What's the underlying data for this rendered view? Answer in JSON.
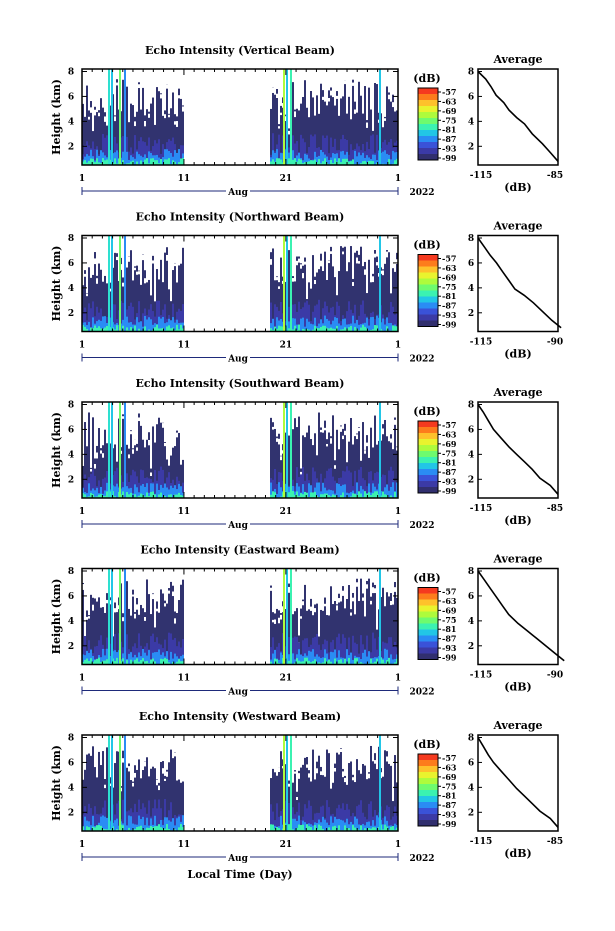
{
  "figure": {
    "xlabel": "Local Time (Day)"
  },
  "colorbar": {
    "unit": "(dB)",
    "ticks": [
      "-57",
      "-63",
      "-69",
      "-75",
      "-81",
      "-87",
      "-93",
      "-99"
    ],
    "colors": [
      "#f53a1f",
      "#fd7c1c",
      "#fec12b",
      "#e9f32e",
      "#aefb3c",
      "#6efb6e",
      "#3bf2b1",
      "#22c6e6",
      "#2a8cf4",
      "#3a52d8",
      "#3b3aa6",
      "#312f6e"
    ]
  },
  "panels": [
    {
      "title": "Echo Intensity (Vertical Beam)",
      "ylabel": "Height (km)",
      "ytick_labels": [
        "8",
        "6",
        "4",
        "2"
      ],
      "xtick_labels": [
        "1",
        "11",
        "21",
        "1"
      ],
      "month_label": "Aug",
      "year_label": "2022",
      "profile": {
        "title": "Average",
        "xtick_labels": [
          "-115",
          "-85"
        ],
        "xlabel": "(dB)",
        "ytick_labels": [
          "8",
          "6",
          "4",
          "2"
        ]
      }
    },
    {
      "title": "Echo Intensity (Northward Beam)",
      "ylabel": "Height (km)",
      "ytick_labels": [
        "8",
        "6",
        "4",
        "2"
      ],
      "xtick_labels": [
        "1",
        "11",
        "21",
        "1"
      ],
      "month_label": "Aug",
      "year_label": "2022",
      "profile": {
        "title": "Average",
        "xtick_labels": [
          "-115",
          "-90"
        ],
        "xlabel": "(dB)",
        "ytick_labels": [
          "8",
          "6",
          "4",
          "2"
        ]
      }
    },
    {
      "title": "Echo Intensity (Southward Beam)",
      "ylabel": "Height (km)",
      "ytick_labels": [
        "8",
        "6",
        "4",
        "2"
      ],
      "xtick_labels": [
        "1",
        "11",
        "21",
        "1"
      ],
      "month_label": "Aug",
      "year_label": "2022",
      "profile": {
        "title": "Average",
        "xtick_labels": [
          "-115",
          "-85"
        ],
        "xlabel": "(dB)",
        "ytick_labels": [
          "8",
          "6",
          "4",
          "2"
        ]
      }
    },
    {
      "title": "Echo Intensity (Eastward Beam)",
      "ylabel": "Height (km)",
      "ytick_labels": [
        "8",
        "6",
        "4",
        "2"
      ],
      "xtick_labels": [
        "1",
        "11",
        "21",
        "1"
      ],
      "month_label": "Aug",
      "year_label": "2022",
      "profile": {
        "title": "Average",
        "xtick_labels": [
          "-115",
          "-90"
        ],
        "xlabel": "(dB)",
        "ytick_labels": [
          "8",
          "6",
          "4",
          "2"
        ]
      }
    },
    {
      "title": "Echo Intensity (Westward Beam)",
      "ylabel": "Height (km)",
      "ytick_labels": [
        "8",
        "6",
        "4",
        "2"
      ],
      "xtick_labels": [
        "1",
        "11",
        "21",
        "1"
      ],
      "month_label": "Aug",
      "year_label": "2022",
      "profile": {
        "title": "Average",
        "xtick_labels": [
          "-115",
          "-85"
        ],
        "xlabel": "(dB)",
        "ytick_labels": [
          "8",
          "6",
          "4",
          "2"
        ]
      }
    }
  ],
  "chart_data": [
    {
      "type": "heatmap",
      "title": "Echo Intensity (Vertical Beam)",
      "ylabel": "Height (km)",
      "xlabel": "",
      "x_range": [
        "2022-08-01",
        "2022-09-01"
      ],
      "ylim": [
        0.5,
        8.2
      ],
      "colorbar_range_db": [
        -99,
        -57
      ],
      "data_gap_days": [
        11,
        19.5
      ],
      "profile": {
        "type": "line",
        "title": "Average",
        "xlim": [
          -115,
          -85
        ],
        "ylim": [
          0.5,
          8.2
        ],
        "x": [
          -116,
          -113,
          -111,
          -109,
          -106,
          -104,
          -101,
          -98,
          -95,
          -91,
          -88,
          -85
        ],
        "y": [
          8.0,
          7.4,
          6.8,
          6.1,
          5.5,
          4.9,
          4.3,
          3.8,
          3.0,
          2.2,
          1.5,
          0.8
        ]
      }
    },
    {
      "type": "heatmap",
      "title": "Echo Intensity (Northward Beam)",
      "ylabel": "Height (km)",
      "xlabel": "",
      "x_range": [
        "2022-08-01",
        "2022-09-01"
      ],
      "ylim": [
        0.5,
        8.2
      ],
      "colorbar_range_db": [
        -99,
        -57
      ],
      "data_gap_days": [
        11,
        19.5
      ],
      "profile": {
        "type": "line",
        "title": "Average",
        "xlim": [
          -115,
          -90
        ],
        "ylim": [
          0.5,
          8.2
        ],
        "x": [
          -116,
          -114,
          -112,
          -110,
          -108,
          -106,
          -104,
          -101,
          -98,
          -95,
          -92,
          -89
        ],
        "y": [
          8.0,
          7.3,
          6.6,
          6.0,
          5.3,
          4.6,
          3.9,
          3.4,
          2.8,
          2.1,
          1.4,
          0.8
        ]
      }
    },
    {
      "type": "heatmap",
      "title": "Echo Intensity (Southward Beam)",
      "ylabel": "Height (km)",
      "xlabel": "",
      "x_range": [
        "2022-08-01",
        "2022-09-01"
      ],
      "ylim": [
        0.5,
        8.2
      ],
      "colorbar_range_db": [
        -99,
        -57
      ],
      "data_gap_days": [
        11,
        19.5
      ],
      "profile": {
        "type": "line",
        "title": "Average",
        "xlim": [
          -115,
          -85
        ],
        "ylim": [
          0.5,
          8.2
        ],
        "x": [
          -116,
          -114,
          -112,
          -110,
          -107,
          -104,
          -101,
          -98,
          -95,
          -92,
          -88,
          -85
        ],
        "y": [
          8.0,
          7.4,
          6.7,
          6.0,
          5.3,
          4.6,
          4.0,
          3.4,
          2.8,
          2.1,
          1.5,
          0.8
        ]
      }
    },
    {
      "type": "heatmap",
      "title": "Echo Intensity (Eastward Beam)",
      "ylabel": "Height (km)",
      "xlabel": "",
      "x_range": [
        "2022-08-01",
        "2022-09-01"
      ],
      "ylim": [
        0.5,
        8.2
      ],
      "colorbar_range_db": [
        -99,
        -57
      ],
      "data_gap_days": [
        11,
        19.5
      ],
      "profile": {
        "type": "line",
        "title": "Average",
        "xlim": [
          -115,
          -90
        ],
        "ylim": [
          0.5,
          8.2
        ],
        "x": [
          -116,
          -114,
          -112,
          -110,
          -108,
          -106,
          -103,
          -100,
          -97,
          -94,
          -91,
          -88
        ],
        "y": [
          8.0,
          7.3,
          6.6,
          5.9,
          5.2,
          4.5,
          3.8,
          3.2,
          2.6,
          2.0,
          1.4,
          0.8
        ]
      }
    },
    {
      "type": "heatmap",
      "title": "Echo Intensity (Westward Beam)",
      "ylabel": "Height (km)",
      "xlabel": "Local Time (Day)",
      "x_range": [
        "2022-08-01",
        "2022-09-01"
      ],
      "ylim": [
        0.5,
        8.2
      ],
      "colorbar_range_db": [
        -99,
        -57
      ],
      "data_gap_days": [
        11,
        19.5
      ],
      "profile": {
        "type": "line",
        "title": "Average",
        "xlim": [
          -115,
          -85
        ],
        "ylim": [
          0.5,
          8.2
        ],
        "x": [
          -116,
          -114,
          -112,
          -110,
          -107,
          -104,
          -101,
          -98,
          -95,
          -92,
          -88,
          -85
        ],
        "y": [
          8.0,
          7.3,
          6.6,
          6.0,
          5.3,
          4.6,
          3.9,
          3.3,
          2.7,
          2.1,
          1.5,
          0.8
        ]
      }
    }
  ]
}
